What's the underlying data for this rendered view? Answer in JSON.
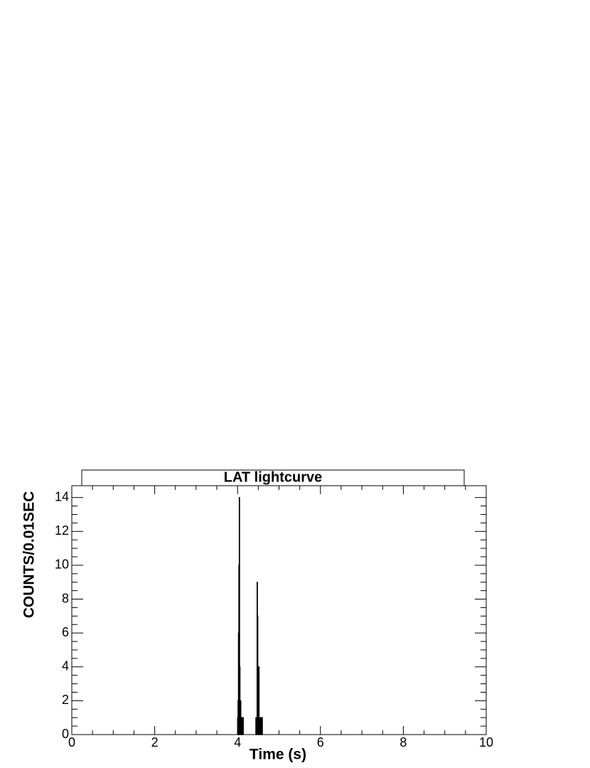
{
  "chart_data": {
    "type": "histogram",
    "title": "LAT lightcurve",
    "xlabel": "Time (s)",
    "ylabel": "COUNTS/0.01SEC",
    "bins": [
      4.0,
      4.01,
      4.02,
      4.03,
      4.04,
      4.05,
      4.06,
      4.07,
      4.08,
      4.09,
      4.1,
      4.11,
      4.12,
      4.13,
      4.14,
      4.15,
      4.16,
      4.17,
      4.18,
      4.19,
      4.2,
      4.21,
      4.22,
      4.23,
      4.24,
      4.25,
      4.26,
      4.27,
      4.28,
      4.29,
      4.3,
      4.31,
      4.32,
      4.33,
      4.34,
      4.35,
      4.36,
      4.37,
      4.38,
      4.39,
      4.4,
      4.41,
      4.42,
      4.43,
      4.44,
      4.45,
      4.46,
      4.47,
      4.48,
      4.49,
      4.5,
      4.51,
      4.52,
      4.53,
      4.54,
      4.55,
      4.56,
      4.57,
      4.58,
      4.59,
      4.6
    ],
    "values": [
      1,
      2,
      6,
      10,
      14,
      4,
      1,
      2,
      1,
      1,
      1,
      1,
      1,
      1,
      0,
      0,
      0,
      0,
      0,
      0,
      0,
      0,
      0,
      0,
      0,
      0,
      0,
      0,
      0,
      0,
      0,
      0,
      0,
      0,
      0,
      0,
      0,
      0,
      0,
      0,
      0,
      0,
      0,
      0,
      1,
      1,
      1,
      9,
      7,
      4,
      2,
      4,
      1,
      1,
      1,
      1,
      1,
      1,
      1,
      1
    ],
    "color": "#000000",
    "xlim": [
      0,
      10
    ],
    "xticks": [
      0,
      2,
      4,
      6,
      8,
      10
    ],
    "ylim": [
      0,
      14.7
    ],
    "yticks": [
      0,
      2,
      4,
      6,
      8,
      10,
      12,
      14
    ]
  }
}
